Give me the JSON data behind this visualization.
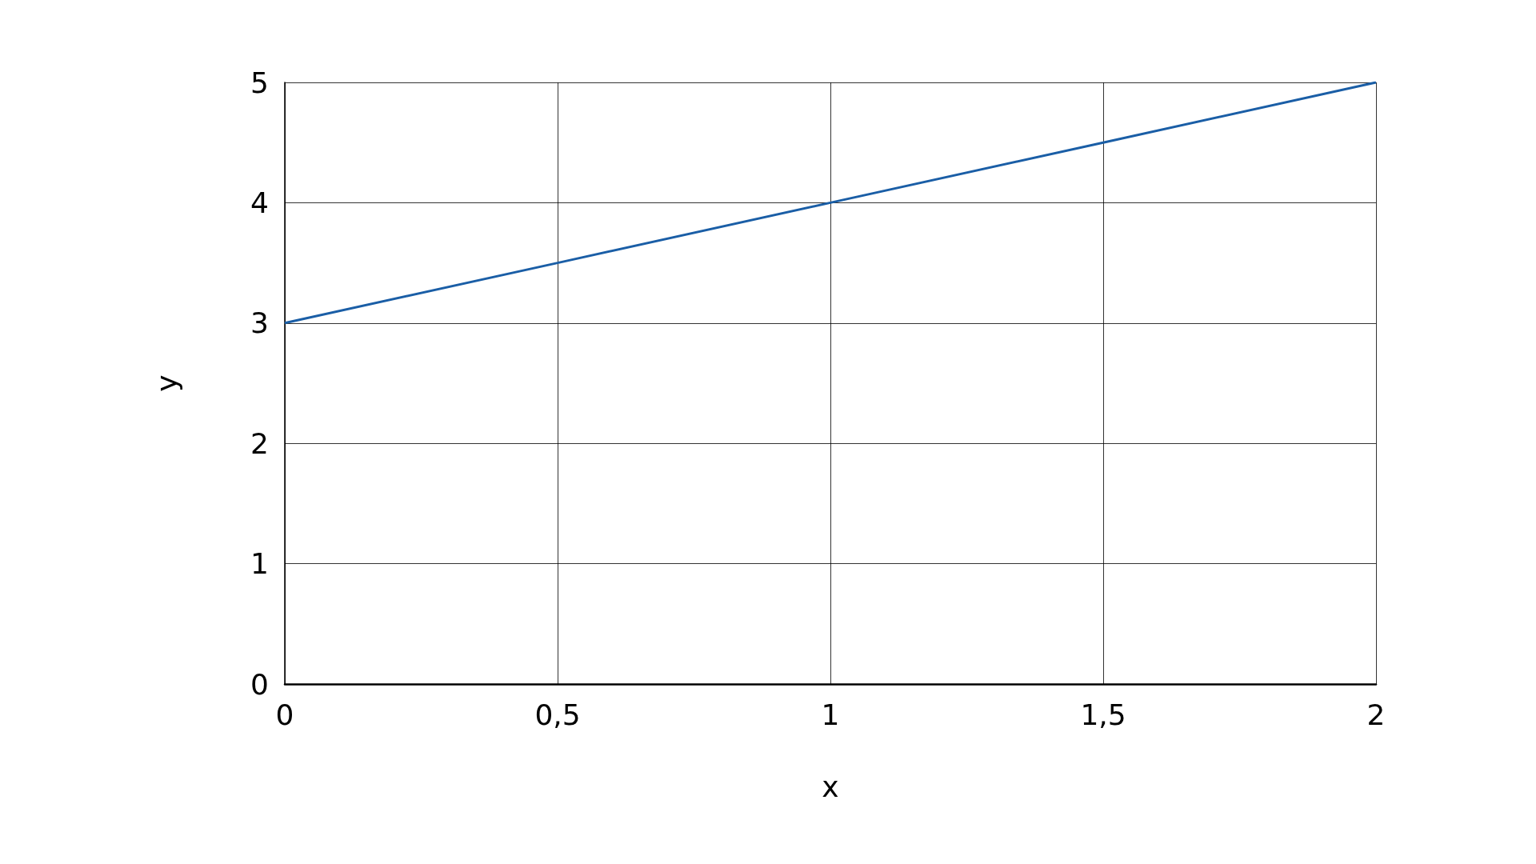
{
  "chart_data": {
    "type": "line",
    "xlabel": "x",
    "ylabel": "y",
    "x": [
      0,
      0.5,
      1,
      1.5,
      2
    ],
    "series": [
      {
        "color": "#1a5ea6",
        "values": [
          3,
          3.5,
          4,
          4.5,
          5
        ]
      }
    ],
    "xlim": [
      0,
      2
    ],
    "xticks": [
      0,
      {
        "value": 0.5,
        "label": "0,5"
      },
      1,
      {
        "value": 1.5,
        "label": "1,5"
      },
      2
    ],
    "ylim": [
      0,
      5
    ],
    "yticks": [
      0,
      1,
      2,
      3,
      4,
      5
    ],
    "grid": true,
    "marker": "none",
    "line_style": "solid"
  }
}
